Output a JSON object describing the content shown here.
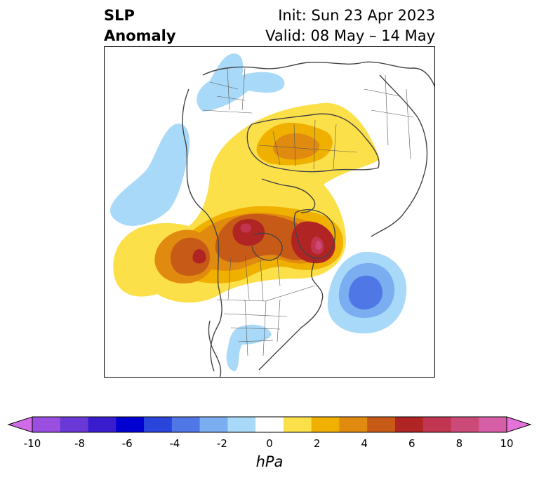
{
  "title": {
    "variable": "SLP",
    "variable_line2": "Anomaly",
    "init": "Init: Sun 23 Apr 2023",
    "valid": "Valid: 08 May – 14 May"
  },
  "colorbar": {
    "unit": "hPa",
    "tick_labels": [
      "-10",
      "-8",
      "-6",
      "-4",
      "-2",
      "0",
      "2",
      "4",
      "6",
      "8",
      "10"
    ],
    "bins": [
      "#d16ce8",
      "#9b4fe0",
      "#6a38d6",
      "#3a1ccf",
      "#0000d0",
      "#2a45db",
      "#4f78e6",
      "#7aaef1",
      "#a9d9f8",
      "#ffffff",
      "#fce04a",
      "#f0b000",
      "#e08a10",
      "#c85a18",
      "#b02424",
      "#c23550",
      "#cc4a78",
      "#d65ea6",
      "#e472da"
    ]
  },
  "map": {
    "projection": "north-polar-stereographic"
  }
}
